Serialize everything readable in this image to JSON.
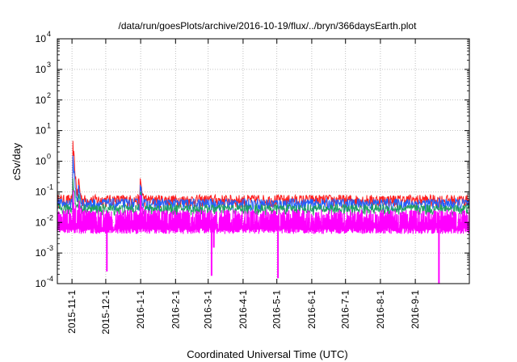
{
  "chart_data": {
    "type": "line",
    "title": "/data/run/goesPlots/archive/2016-10-19/flux/../bryn/366daysEarth.plot",
    "xlabel": "Coordinated Universal Time (UTC)",
    "ylabel": "cSv/day",
    "yscale": "log",
    "ylim": [
      0.0001,
      10000
    ],
    "xlim": [
      "2015-10-19",
      "2016-10-19"
    ],
    "grid": true,
    "legend": "none",
    "y_ticks": [
      {
        "base": "10",
        "exp": "-4"
      },
      {
        "base": "10",
        "exp": "-3"
      },
      {
        "base": "10",
        "exp": "-2"
      },
      {
        "base": "10",
        "exp": "-1"
      },
      {
        "base": "10",
        "exp": "0"
      },
      {
        "base": "10",
        "exp": "1"
      },
      {
        "base": "10",
        "exp": "2"
      },
      {
        "base": "10",
        "exp": "3"
      },
      {
        "base": "10",
        "exp": "4"
      }
    ],
    "x_ticks": [
      {
        "label": "2015-11-1",
        "date": "2015-11-01"
      },
      {
        "label": "2015-12-1",
        "date": "2015-12-01"
      },
      {
        "label": "2016-1-1",
        "date": "2016-01-01"
      },
      {
        "label": "2016-2-1",
        "date": "2016-02-01"
      },
      {
        "label": "2016-3-1",
        "date": "2016-03-01"
      },
      {
        "label": "2016-4-1",
        "date": "2016-04-01"
      },
      {
        "label": "2016-5-1",
        "date": "2016-05-01"
      },
      {
        "label": "2016-6-1",
        "date": "2016-06-01"
      },
      {
        "label": "2016-7-1",
        "date": "2016-07-01"
      },
      {
        "label": "2016-8-1",
        "date": "2016-08-01"
      },
      {
        "label": "2016-9-1",
        "date": "2016-09-01"
      }
    ],
    "series": [
      {
        "color": "#ff2020",
        "base": 0.05,
        "noise_low": 0.6,
        "noise_high": 1.6
      },
      {
        "color": "#2060ff",
        "base": 0.04,
        "noise_low": 0.6,
        "noise_high": 1.5
      },
      {
        "color": "#20a060",
        "base": 0.028,
        "noise_low": 0.6,
        "noise_high": 1.4
      },
      {
        "color": "#ff00ff",
        "base": 0.012,
        "noise_low": 0.4,
        "noise_high": 2.2
      }
    ],
    "events": [
      {
        "date": "2015-11-02",
        "peaks": [
          3.0,
          1.2,
          0.3,
          0.08
        ]
      },
      {
        "date": "2015-11-07",
        "peaks": [
          0.22,
          0.14,
          0.08,
          0.04
        ]
      },
      {
        "date": "2016-01-01",
        "peaks": [
          0.22,
          0.15,
          0.09,
          0.05
        ]
      }
    ],
    "dips": [
      {
        "date": "2015-12-02",
        "value": 0.00025
      },
      {
        "date": "2016-03-04",
        "value": 0.00018
      },
      {
        "date": "2016-03-06",
        "value": 0.0015
      },
      {
        "date": "2016-05-02",
        "value": 0.00015
      },
      {
        "date": "2016-09-22",
        "value": 0.0001
      }
    ]
  }
}
